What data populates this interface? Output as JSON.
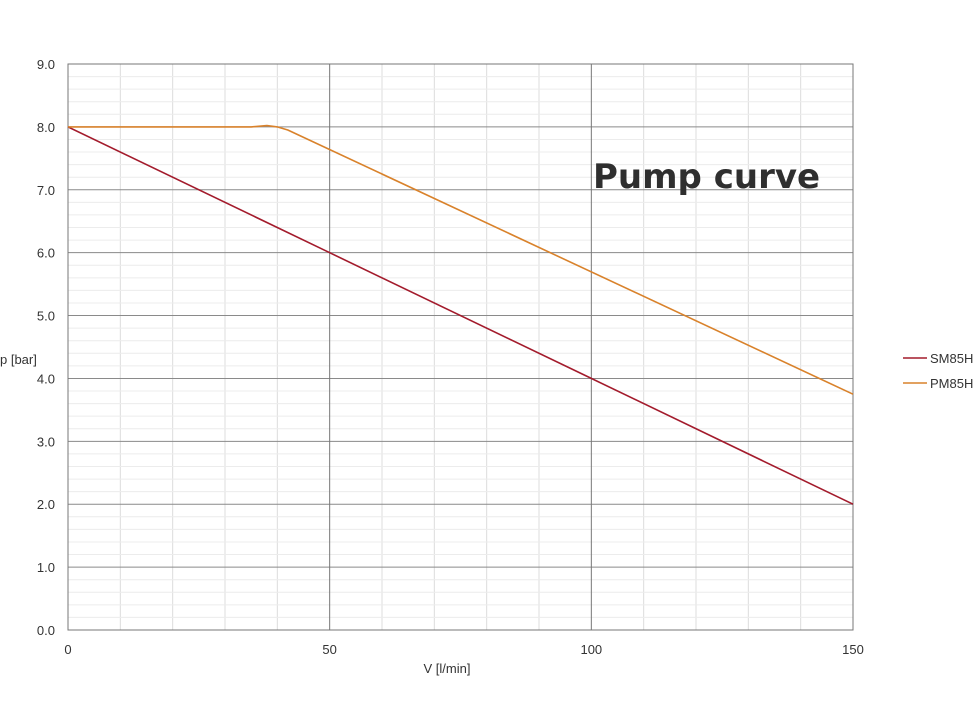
{
  "chart_data": {
    "type": "line",
    "title": "Pump curve",
    "xlabel": "V [l/min]",
    "ylabel": "p [bar]",
    "xlim": [
      0,
      150
    ],
    "ylim": [
      0,
      9
    ],
    "xticks": [
      0,
      50,
      100,
      150
    ],
    "xtick_labels": [
      "0",
      "50",
      "100",
      "150"
    ],
    "yticks": [
      0,
      1,
      2,
      3,
      4,
      5,
      6,
      7,
      8,
      9
    ],
    "ytick_labels": [
      "0.0",
      "1.0",
      "2.0",
      "3.0",
      "4.0",
      "5.0",
      "6.0",
      "7.0",
      "8.0",
      "9.0"
    ],
    "grid": true,
    "legend_position": "right",
    "series": [
      {
        "name": "SM85H",
        "color": "#a31b2c",
        "x": [
          0,
          50,
          100,
          150
        ],
        "y": [
          8.0,
          6.0,
          4.0,
          2.0
        ]
      },
      {
        "name": "PM85H",
        "color": "#d9822b",
        "x": [
          0,
          35,
          38,
          40,
          42,
          150
        ],
        "y": [
          8.0,
          8.0,
          8.02,
          8.0,
          7.95,
          3.75
        ]
      }
    ]
  }
}
